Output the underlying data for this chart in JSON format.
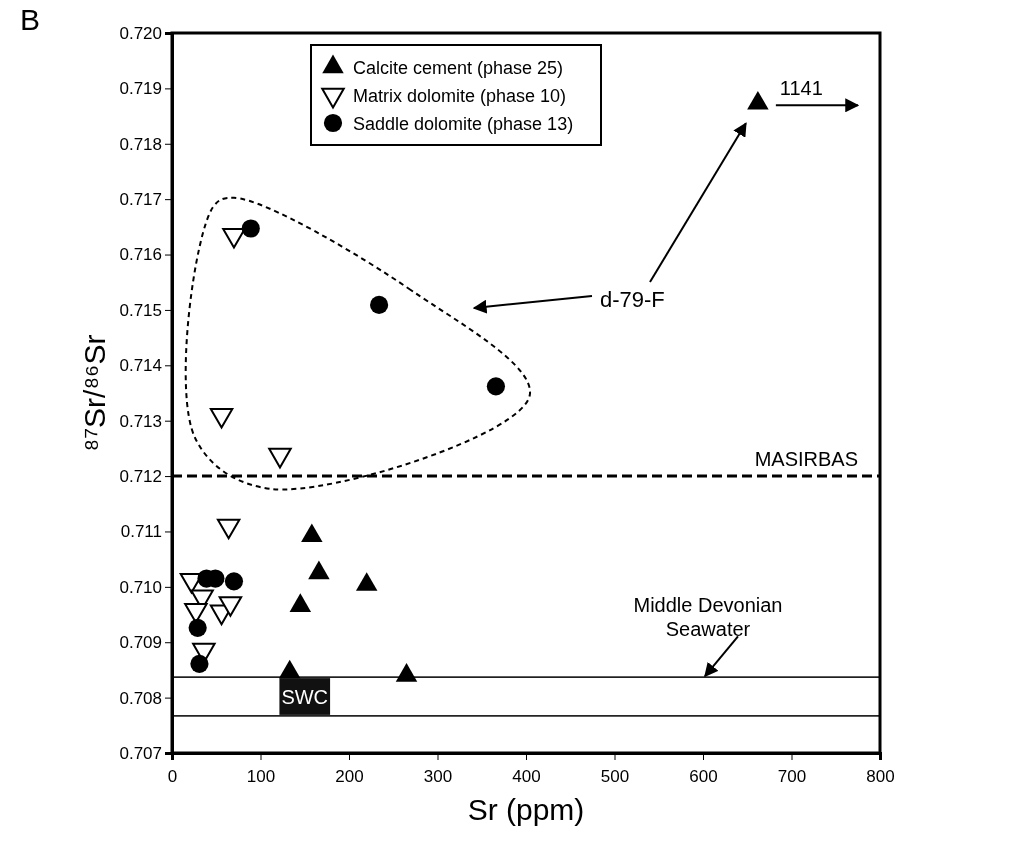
{
  "chart_data": {
    "type": "scatter",
    "xlabel": "Sr (ppm)",
    "ylabel": "⁸⁷Sr/⁸⁶Sr",
    "xlim": [
      0,
      800
    ],
    "xticks": [
      0,
      100,
      200,
      300,
      400,
      500,
      600,
      700,
      800
    ],
    "ylim": [
      0.707,
      0.72
    ],
    "yticks": [
      0.707,
      0.708,
      0.709,
      {
        "value": 0.71,
        "label": "0.710"
      },
      0.711,
      0.712,
      0.713,
      0.714,
      0.715,
      0.716,
      0.717,
      0.718,
      0.719,
      {
        "value": 0.72,
        "label": "0.720"
      }
    ],
    "grid": false,
    "legend": "top",
    "series": [
      {
        "name": "Calcite cement (phase 25)",
        "color": "#000000",
        "marker": "triangle",
        "x": [
          158,
          166,
          220,
          145,
          133,
          265,
          662
        ],
        "values": [
          0.71092,
          0.71025,
          0.71004,
          0.70966,
          0.70846,
          0.7084,
          0.71873
        ]
      },
      {
        "name": "Matrix dolomite (phase 10)",
        "color": "#000000",
        "marker": "triangle-down",
        "x": [
          64,
          22,
          34,
          27,
          56,
          66,
          36,
          122,
          70,
          56
        ],
        "values": [
          0.7111,
          0.71012,
          0.70982,
          0.70958,
          0.70955,
          0.7097,
          0.70886,
          0.71238,
          0.71635,
          0.7131
        ]
      },
      {
        "name": "Saddle dolomite (phase 13)",
        "color": "#000000",
        "marker": "circle",
        "x": [
          89,
          234,
          366,
          39,
          49,
          70,
          29,
          31
        ],
        "values": [
          0.71647,
          0.71509,
          0.71362,
          0.71015,
          0.71015,
          0.7101,
          0.70926,
          0.70861
        ]
      }
    ],
    "ref_lines": [
      {
        "axis": "y",
        "value": 0.712,
        "label": "MASIRBAS",
        "line_style": "dashed"
      }
    ],
    "bands": [
      {
        "axis": "y",
        "from": 0.70767,
        "to": 0.70837,
        "label": "SWC"
      }
    ],
    "annotations": [
      "B",
      "d-79-F",
      {
        "text": "1141",
        "x": 662,
        "y": 0.71873
      },
      {
        "text": "Middle Devonian Seawater",
        "x": 600,
        "y": 0.70837
      }
    ]
  }
}
